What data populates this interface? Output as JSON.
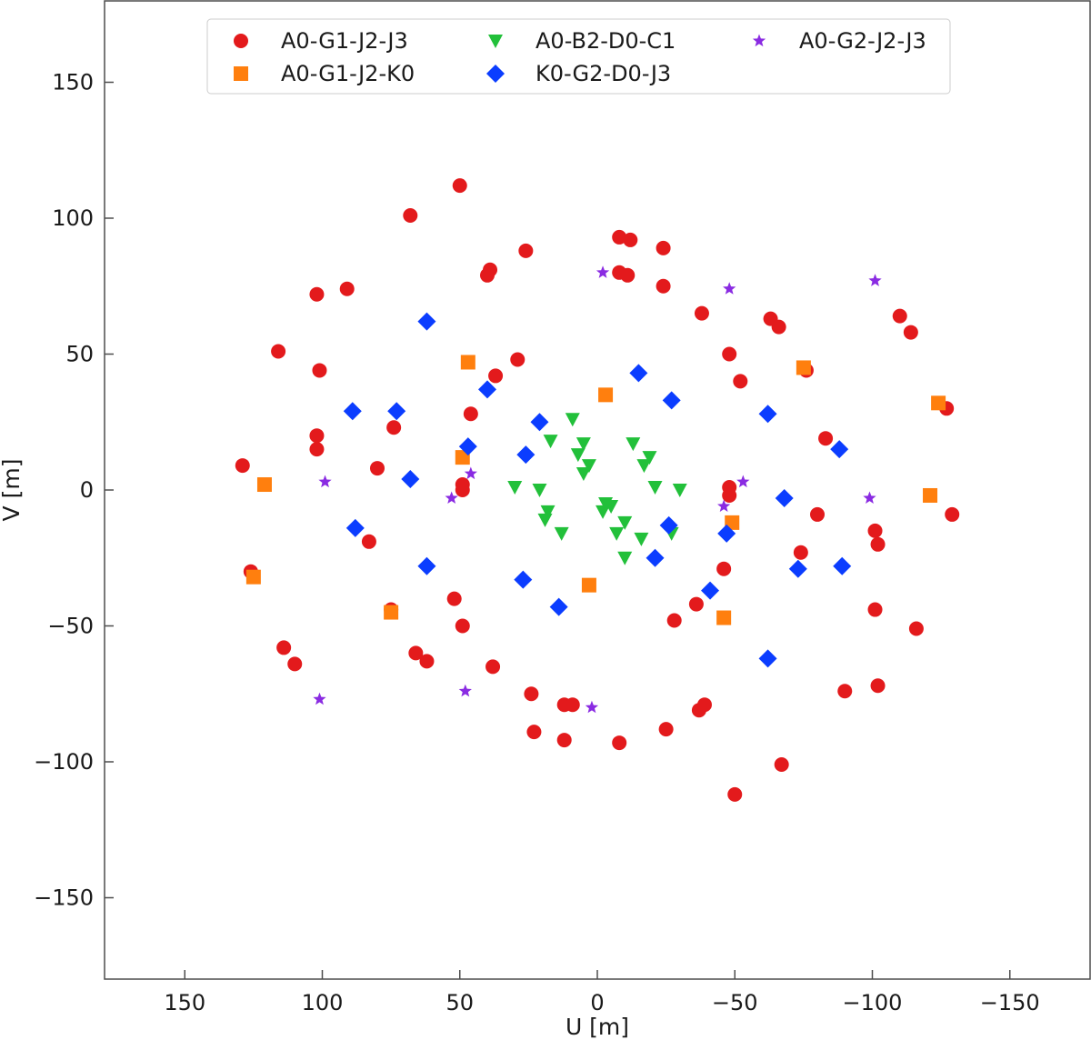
{
  "chart_data": {
    "type": "scatter",
    "title": "",
    "xlabel": "U [m]",
    "ylabel": "V [m]",
    "xlim": [
      180,
      -180
    ],
    "ylim": [
      -180,
      180
    ],
    "x_inverted": true,
    "xticks": [
      150,
      100,
      50,
      0,
      -50,
      -100,
      -150
    ],
    "yticks": [
      150,
      100,
      50,
      0,
      -50,
      -100,
      -150
    ],
    "xtick_labels": [
      "150",
      "100",
      "50",
      "0",
      "−50",
      "−100",
      "−150"
    ],
    "ytick_labels": [
      "150",
      "100",
      "50",
      "0",
      "−50",
      "−100",
      "−150"
    ],
    "grid": false,
    "legend": {
      "position": "top",
      "columns": 3
    },
    "series": [
      {
        "name": "A0-G1-J2-J3",
        "marker": "circle",
        "color": "#e31a1c",
        "points": [
          [
            50,
            112
          ],
          [
            68,
            101
          ],
          [
            -8,
            93
          ],
          [
            -12,
            92
          ],
          [
            26,
            88
          ],
          [
            -24,
            89
          ],
          [
            39,
            81
          ],
          [
            40,
            79
          ],
          [
            -8,
            80
          ],
          [
            -11,
            79
          ],
          [
            -24,
            75
          ],
          [
            91,
            74
          ],
          [
            102,
            72
          ],
          [
            -38,
            65
          ],
          [
            -63,
            63
          ],
          [
            -66,
            60
          ],
          [
            -110,
            64
          ],
          [
            -114,
            58
          ],
          [
            116,
            51
          ],
          [
            -48,
            50
          ],
          [
            29,
            48
          ],
          [
            101,
            44
          ],
          [
            37,
            42
          ],
          [
            -52,
            40
          ],
          [
            -76,
            44
          ],
          [
            46,
            28
          ],
          [
            74,
            23
          ],
          [
            -83,
            19
          ],
          [
            102,
            20
          ],
          [
            102,
            15
          ],
          [
            129,
            9
          ],
          [
            80,
            8
          ],
          [
            49,
            2
          ],
          [
            49,
            0
          ],
          [
            -48,
            1
          ],
          [
            -48,
            -2
          ],
          [
            -80,
            -9
          ],
          [
            -101,
            -15
          ],
          [
            -102,
            -20
          ],
          [
            -129,
            -9
          ],
          [
            -127,
            30
          ],
          [
            83,
            -19
          ],
          [
            -74,
            -23
          ],
          [
            -46,
            -29
          ],
          [
            126,
            -30
          ],
          [
            75,
            -44
          ],
          [
            52,
            -40
          ],
          [
            49,
            -50
          ],
          [
            -36,
            -42
          ],
          [
            -28,
            -48
          ],
          [
            -116,
            -51
          ],
          [
            -101,
            -44
          ],
          [
            66,
            -60
          ],
          [
            62,
            -63
          ],
          [
            114,
            -58
          ],
          [
            110,
            -64
          ],
          [
            38,
            -65
          ],
          [
            -90,
            -74
          ],
          [
            -102,
            -72
          ],
          [
            24,
            -75
          ],
          [
            12,
            -79
          ],
          [
            9,
            -79
          ],
          [
            -37,
            -81
          ],
          [
            -39,
            -79
          ],
          [
            23,
            -89
          ],
          [
            -25,
            -88
          ],
          [
            12,
            -92
          ],
          [
            -8,
            -93
          ],
          [
            -67,
            -101
          ],
          [
            -50,
            -112
          ]
        ]
      },
      {
        "name": "A0-G1-J2-K0",
        "marker": "square",
        "color": "#ff7f0e",
        "points": [
          [
            47,
            47
          ],
          [
            -3,
            35
          ],
          [
            -75,
            45
          ],
          [
            -124,
            32
          ],
          [
            49,
            12
          ],
          [
            121,
            2
          ],
          [
            -121,
            -2
          ],
          [
            -49,
            -12
          ],
          [
            3,
            -35
          ],
          [
            125,
            -32
          ],
          [
            75,
            -45
          ],
          [
            -46,
            -47
          ]
        ]
      },
      {
        "name": "A0-B2-D0-C1",
        "marker": "triangle-down",
        "color": "#22c03a",
        "points": [
          [
            9,
            26
          ],
          [
            -13,
            17
          ],
          [
            7,
            13
          ],
          [
            5,
            17
          ],
          [
            17,
            18
          ],
          [
            -19,
            12
          ],
          [
            -17,
            9
          ],
          [
            3,
            9
          ],
          [
            5,
            6
          ],
          [
            30,
            1
          ],
          [
            21,
            0
          ],
          [
            -21,
            1
          ],
          [
            -30,
            0
          ],
          [
            -3,
            -5
          ],
          [
            -5,
            -6
          ],
          [
            -2,
            -8
          ],
          [
            18,
            -8
          ],
          [
            19,
            -11
          ],
          [
            13,
            -16
          ],
          [
            -7,
            -16
          ],
          [
            -10,
            -12
          ],
          [
            -16,
            -18
          ],
          [
            -27,
            -16
          ],
          [
            -10,
            -25
          ]
        ]
      },
      {
        "name": "K0-G2-D0-J3",
        "marker": "diamond",
        "color": "#0b3dff",
        "points": [
          [
            62,
            62
          ],
          [
            -15,
            43
          ],
          [
            40,
            37
          ],
          [
            -27,
            33
          ],
          [
            89,
            29
          ],
          [
            73,
            29
          ],
          [
            -62,
            28
          ],
          [
            21,
            25
          ],
          [
            47,
            16
          ],
          [
            26,
            13
          ],
          [
            -88,
            15
          ],
          [
            68,
            4
          ],
          [
            88,
            -14
          ],
          [
            -68,
            -3
          ],
          [
            -26,
            -13
          ],
          [
            -47,
            -16
          ],
          [
            62,
            -28
          ],
          [
            -73,
            -29
          ],
          [
            -89,
            -28
          ],
          [
            27,
            -33
          ],
          [
            14,
            -43
          ],
          [
            -21,
            -25
          ],
          [
            -41,
            -37
          ],
          [
            -62,
            -62
          ]
        ]
      },
      {
        "name": "A0-G2-J2-J3",
        "marker": "star",
        "color": "#8a2be2",
        "points": [
          [
            -2,
            80
          ],
          [
            -48,
            74
          ],
          [
            -101,
            77
          ],
          [
            99,
            3
          ],
          [
            46,
            6
          ],
          [
            53,
            -3
          ],
          [
            -53,
            3
          ],
          [
            -46,
            -6
          ],
          [
            -99,
            -3
          ],
          [
            101,
            -77
          ],
          [
            48,
            -74
          ],
          [
            2,
            -80
          ]
        ]
      }
    ]
  }
}
